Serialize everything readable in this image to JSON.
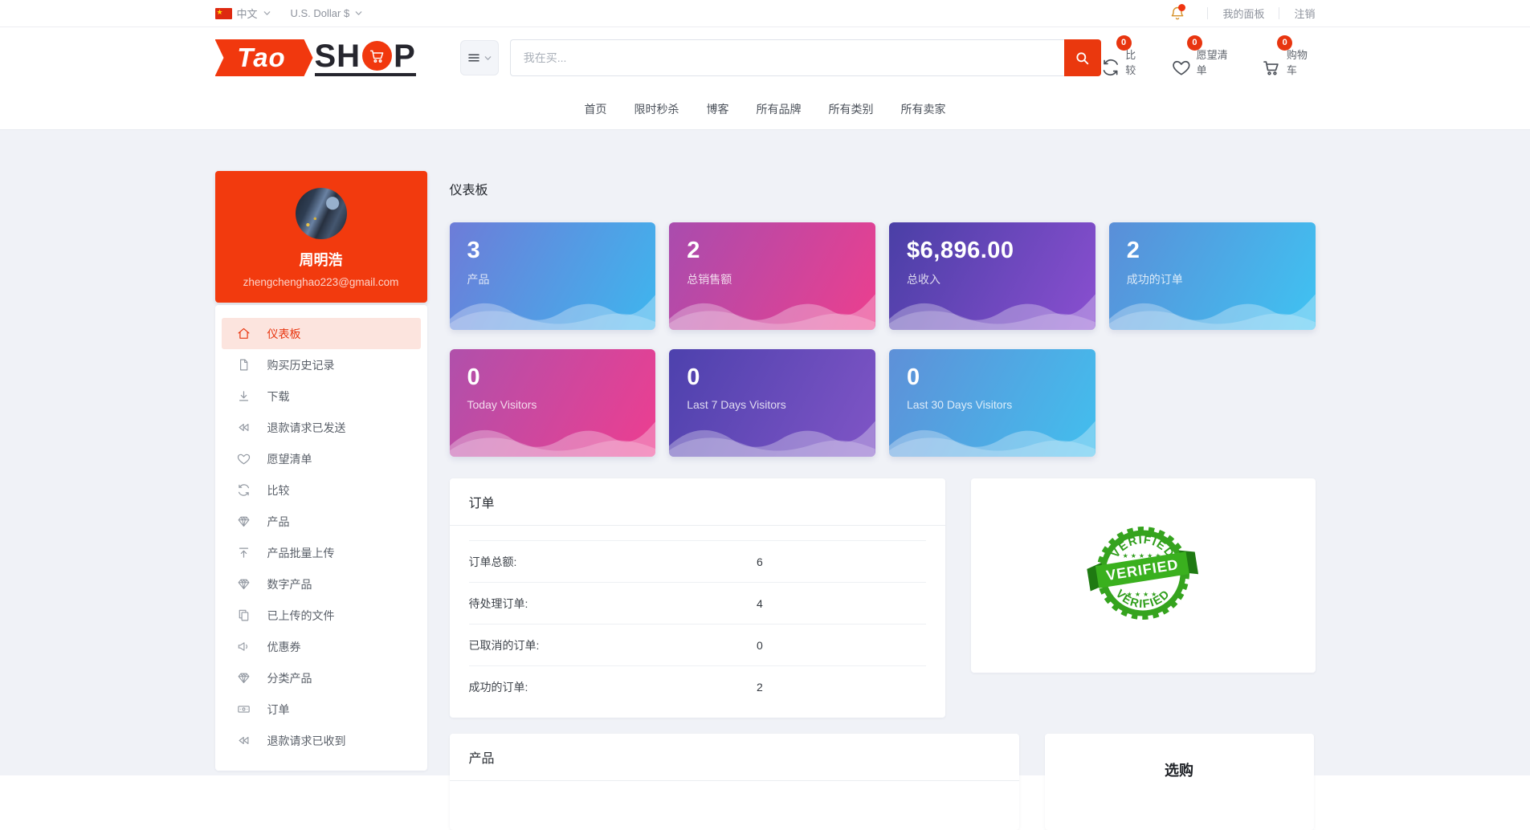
{
  "colors": {
    "accent_red": "#ea380e",
    "badge_red": "#e8350f",
    "active_item_bg": "#fce4de",
    "page_bg": "#f0f2f7",
    "verified_green": "#35a31e"
  },
  "topbar": {
    "language": "中文",
    "language_flag_icon": "flag-cn",
    "currency": "U.S. Dollar $",
    "notification_icon": "bell",
    "my_panel": "我的面板",
    "logout": "注销"
  },
  "header": {
    "logo": {
      "tao": "Tao",
      "sh": "SH",
      "p": "P",
      "cart_icon": "cart"
    },
    "category_button_icon": "hamburger",
    "search": {
      "placeholder": "我在买...",
      "value": "",
      "button_icon": "search"
    },
    "compare": {
      "label": "比较",
      "count": "0",
      "icon": "compare"
    },
    "wishlist": {
      "label": "愿望清单",
      "count": "0",
      "icon": "heart"
    },
    "cart": {
      "label": "购物车",
      "count": "0",
      "icon": "cart"
    }
  },
  "nav": {
    "links": [
      "首页",
      "限时秒杀",
      "博客",
      "所有品牌",
      "所有类别",
      "所有卖家"
    ]
  },
  "sidebar": {
    "profile": {
      "name": "周明浩",
      "email": "zhengchenghao223@gmail.com"
    },
    "menu": [
      {
        "label": "仪表板",
        "icon": "home",
        "active": true
      },
      {
        "label": "购买历史记录",
        "icon": "file",
        "active": false
      },
      {
        "label": "下载",
        "icon": "download",
        "active": false
      },
      {
        "label": "退款请求已发送",
        "icon": "rewind",
        "active": false
      },
      {
        "label": "愿望清单",
        "icon": "heart",
        "active": false
      },
      {
        "label": "比较",
        "icon": "compare",
        "active": false
      },
      {
        "label": "产品",
        "icon": "gem",
        "active": false
      },
      {
        "label": "产品批量上传",
        "icon": "upload",
        "active": false
      },
      {
        "label": "数字产品",
        "icon": "gem",
        "active": false
      },
      {
        "label": "已上传的文件",
        "icon": "copy",
        "active": false
      },
      {
        "label": "优惠券",
        "icon": "megaphone",
        "active": false
      },
      {
        "label": "分类产品",
        "icon": "gem",
        "active": false
      },
      {
        "label": "订单",
        "icon": "banknote",
        "active": false
      },
      {
        "label": "退款请求已收到",
        "icon": "rewind",
        "active": false
      }
    ]
  },
  "main": {
    "page_title": "仪表板",
    "stat_cards_row1": [
      {
        "value": "3",
        "label": "产品",
        "c1": "#6d7cd8",
        "c2": "#3eb6ee"
      },
      {
        "value": "2",
        "label": "总销售额",
        "c1": "#a94cae",
        "c2": "#ec3f8e"
      },
      {
        "value": "$6,896.00",
        "label": "总收入",
        "c1": "#4a3fa6",
        "c2": "#8a4fd0"
      },
      {
        "value": "2",
        "label": "成功的订单",
        "c1": "#5a8ed8",
        "c2": "#3fc3f2"
      }
    ],
    "stat_cards_row2": [
      {
        "value": "0",
        "label": "Today Visitors",
        "c1": "#b050ab",
        "c2": "#ed3e90"
      },
      {
        "value": "0",
        "label": "Last 7 Days Visitors",
        "c1": "#4d41ad",
        "c2": "#8055c6"
      },
      {
        "value": "0",
        "label": "Last 30 Days Visitors",
        "c1": "#5e90d8",
        "c2": "#42bfee"
      }
    ],
    "orders_panel": {
      "title": "订单",
      "rows": [
        {
          "label": "订单总额:",
          "value": "6"
        },
        {
          "label": "待处理订单:",
          "value": "4"
        },
        {
          "label": "已取消的订单:",
          "value": "0"
        },
        {
          "label": "成功的订单:",
          "value": "2"
        }
      ]
    },
    "verified_badge": {
      "text_top": "VERIFIED",
      "text_middle": "VERIFIED",
      "text_bottom": "VERIFIED"
    },
    "products_panel": {
      "title": "产品"
    },
    "shop_panel": {
      "title": "选购"
    }
  }
}
